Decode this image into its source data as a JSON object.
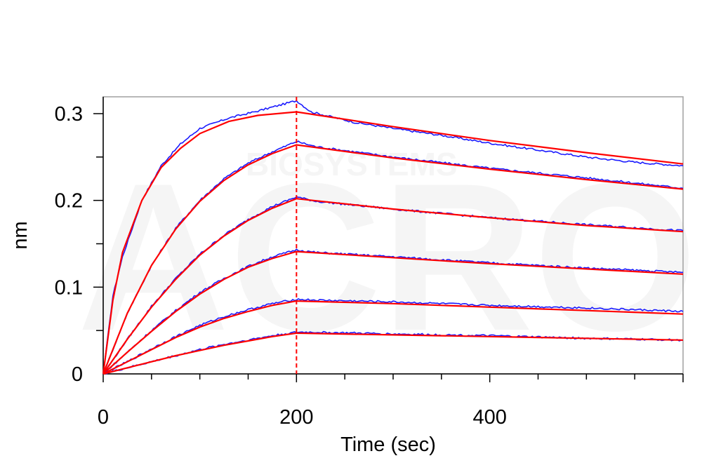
{
  "chart_data": {
    "type": "line",
    "title": "",
    "xlabel": "Time (sec)",
    "ylabel": "nm",
    "xlim": [
      0,
      600
    ],
    "ylim": [
      0,
      0.32
    ],
    "xticks": [
      0,
      200,
      400
    ],
    "xtick_labels": [
      "0",
      "200",
      "400"
    ],
    "yticks": [
      0,
      0.1,
      0.2,
      0.3
    ],
    "ytick_labels": [
      "0",
      "0.1",
      "0.2",
      "0.3"
    ],
    "grid": false,
    "legend": "none",
    "dissociation_start": 200,
    "colors": {
      "data": "#1a1aff",
      "fit": "#ff0000",
      "marker_line": "#ff0000",
      "frame": "#a0a0a0"
    },
    "series": [
      {
        "association": [
          [
            0,
            0
          ],
          [
            10,
            0.09
          ],
          [
            20,
            0.135
          ],
          [
            40,
            0.2
          ],
          [
            60,
            0.24
          ],
          [
            80,
            0.265
          ],
          [
            100,
            0.283
          ],
          [
            130,
            0.295
          ],
          [
            160,
            0.303
          ],
          [
            190,
            0.312
          ],
          [
            200,
            0.315
          ]
        ],
        "dissociation": [
          [
            200,
            0.315
          ],
          [
            215,
            0.302
          ],
          [
            260,
            0.29
          ],
          [
            300,
            0.283
          ],
          [
            350,
            0.275
          ],
          [
            400,
            0.266
          ],
          [
            450,
            0.258
          ],
          [
            500,
            0.25
          ],
          [
            550,
            0.244
          ],
          [
            600,
            0.24
          ]
        ],
        "fit_association": [
          [
            0,
            0
          ],
          [
            10,
            0.085
          ],
          [
            20,
            0.14
          ],
          [
            40,
            0.2
          ],
          [
            60,
            0.238
          ],
          [
            80,
            0.26
          ],
          [
            100,
            0.277
          ],
          [
            130,
            0.291
          ],
          [
            160,
            0.298
          ],
          [
            200,
            0.302
          ]
        ],
        "fit_dissociation": [
          [
            200,
            0.302
          ],
          [
            300,
            0.285
          ],
          [
            400,
            0.269
          ],
          [
            500,
            0.255
          ],
          [
            600,
            0.242
          ]
        ]
      },
      {
        "association": [
          [
            0,
            0
          ],
          [
            25,
            0.07
          ],
          [
            50,
            0.125
          ],
          [
            75,
            0.168
          ],
          [
            100,
            0.2
          ],
          [
            125,
            0.225
          ],
          [
            150,
            0.243
          ],
          [
            175,
            0.256
          ],
          [
            200,
            0.268
          ]
        ],
        "dissociation": [
          [
            200,
            0.268
          ],
          [
            220,
            0.262
          ],
          [
            300,
            0.25
          ],
          [
            400,
            0.237
          ],
          [
            500,
            0.226
          ],
          [
            600,
            0.214
          ]
        ],
        "fit_association": [
          [
            0,
            0
          ],
          [
            25,
            0.07
          ],
          [
            50,
            0.125
          ],
          [
            75,
            0.167
          ],
          [
            100,
            0.199
          ],
          [
            125,
            0.223
          ],
          [
            150,
            0.241
          ],
          [
            175,
            0.254
          ],
          [
            200,
            0.264
          ]
        ],
        "fit_dissociation": [
          [
            200,
            0.264
          ],
          [
            300,
            0.249
          ],
          [
            400,
            0.236
          ],
          [
            500,
            0.224
          ],
          [
            600,
            0.213
          ]
        ]
      },
      {
        "association": [
          [
            0,
            0
          ],
          [
            25,
            0.04
          ],
          [
            50,
            0.078
          ],
          [
            75,
            0.11
          ],
          [
            100,
            0.138
          ],
          [
            125,
            0.16
          ],
          [
            150,
            0.178
          ],
          [
            175,
            0.193
          ],
          [
            200,
            0.204
          ]
        ],
        "dissociation": [
          [
            200,
            0.204
          ],
          [
            220,
            0.199
          ],
          [
            300,
            0.19
          ],
          [
            400,
            0.18
          ],
          [
            500,
            0.172
          ],
          [
            600,
            0.165
          ]
        ],
        "fit_association": [
          [
            0,
            0
          ],
          [
            25,
            0.04
          ],
          [
            50,
            0.077
          ],
          [
            75,
            0.109
          ],
          [
            100,
            0.137
          ],
          [
            125,
            0.159
          ],
          [
            150,
            0.177
          ],
          [
            175,
            0.191
          ],
          [
            200,
            0.202
          ]
        ],
        "fit_dissociation": [
          [
            200,
            0.202
          ],
          [
            300,
            0.19
          ],
          [
            400,
            0.18
          ],
          [
            500,
            0.171
          ],
          [
            600,
            0.164
          ]
        ]
      },
      {
        "association": [
          [
            0,
            0
          ],
          [
            25,
            0.025
          ],
          [
            50,
            0.05
          ],
          [
            75,
            0.073
          ],
          [
            100,
            0.094
          ],
          [
            125,
            0.11
          ],
          [
            150,
            0.124
          ],
          [
            175,
            0.135
          ],
          [
            200,
            0.143
          ]
        ],
        "dissociation": [
          [
            200,
            0.143
          ],
          [
            220,
            0.14
          ],
          [
            300,
            0.135
          ],
          [
            400,
            0.128
          ],
          [
            500,
            0.122
          ],
          [
            600,
            0.117
          ]
        ],
        "fit_association": [
          [
            0,
            0
          ],
          [
            25,
            0.025
          ],
          [
            50,
            0.049
          ],
          [
            75,
            0.072
          ],
          [
            100,
            0.092
          ],
          [
            125,
            0.109
          ],
          [
            150,
            0.123
          ],
          [
            175,
            0.133
          ],
          [
            200,
            0.141
          ]
        ],
        "fit_dissociation": [
          [
            200,
            0.141
          ],
          [
            300,
            0.134
          ],
          [
            400,
            0.127
          ],
          [
            500,
            0.121
          ],
          [
            600,
            0.115
          ]
        ]
      },
      {
        "association": [
          [
            0,
            0
          ],
          [
            25,
            0.014
          ],
          [
            50,
            0.029
          ],
          [
            75,
            0.043
          ],
          [
            100,
            0.056
          ],
          [
            125,
            0.066
          ],
          [
            150,
            0.074
          ],
          [
            175,
            0.081
          ],
          [
            200,
            0.086
          ]
        ],
        "dissociation": [
          [
            200,
            0.086
          ],
          [
            220,
            0.085
          ],
          [
            300,
            0.083
          ],
          [
            400,
            0.079
          ],
          [
            500,
            0.076
          ],
          [
            600,
            0.072
          ]
        ],
        "fit_association": [
          [
            0,
            0
          ],
          [
            25,
            0.014
          ],
          [
            50,
            0.028
          ],
          [
            75,
            0.042
          ],
          [
            100,
            0.054
          ],
          [
            125,
            0.064
          ],
          [
            150,
            0.072
          ],
          [
            175,
            0.079
          ],
          [
            200,
            0.084
          ]
        ],
        "fit_dissociation": [
          [
            200,
            0.084
          ],
          [
            300,
            0.081
          ],
          [
            400,
            0.077
          ],
          [
            500,
            0.073
          ],
          [
            600,
            0.069
          ]
        ]
      },
      {
        "association": [
          [
            0,
            0
          ],
          [
            25,
            0.007
          ],
          [
            50,
            0.014
          ],
          [
            75,
            0.021
          ],
          [
            100,
            0.028
          ],
          [
            125,
            0.034
          ],
          [
            150,
            0.039
          ],
          [
            175,
            0.044
          ],
          [
            200,
            0.048
          ]
        ],
        "dissociation": [
          [
            200,
            0.048
          ],
          [
            220,
            0.048
          ],
          [
            300,
            0.046
          ],
          [
            400,
            0.044
          ],
          [
            500,
            0.041
          ],
          [
            600,
            0.039
          ]
        ],
        "fit_association": [
          [
            0,
            0
          ],
          [
            25,
            0.007
          ],
          [
            50,
            0.014
          ],
          [
            75,
            0.021
          ],
          [
            100,
            0.027
          ],
          [
            125,
            0.033
          ],
          [
            150,
            0.038
          ],
          [
            175,
            0.043
          ],
          [
            200,
            0.047
          ]
        ],
        "fit_dissociation": [
          [
            200,
            0.047
          ],
          [
            300,
            0.045
          ],
          [
            400,
            0.043
          ],
          [
            500,
            0.041
          ],
          [
            600,
            0.039
          ]
        ]
      }
    ]
  }
}
